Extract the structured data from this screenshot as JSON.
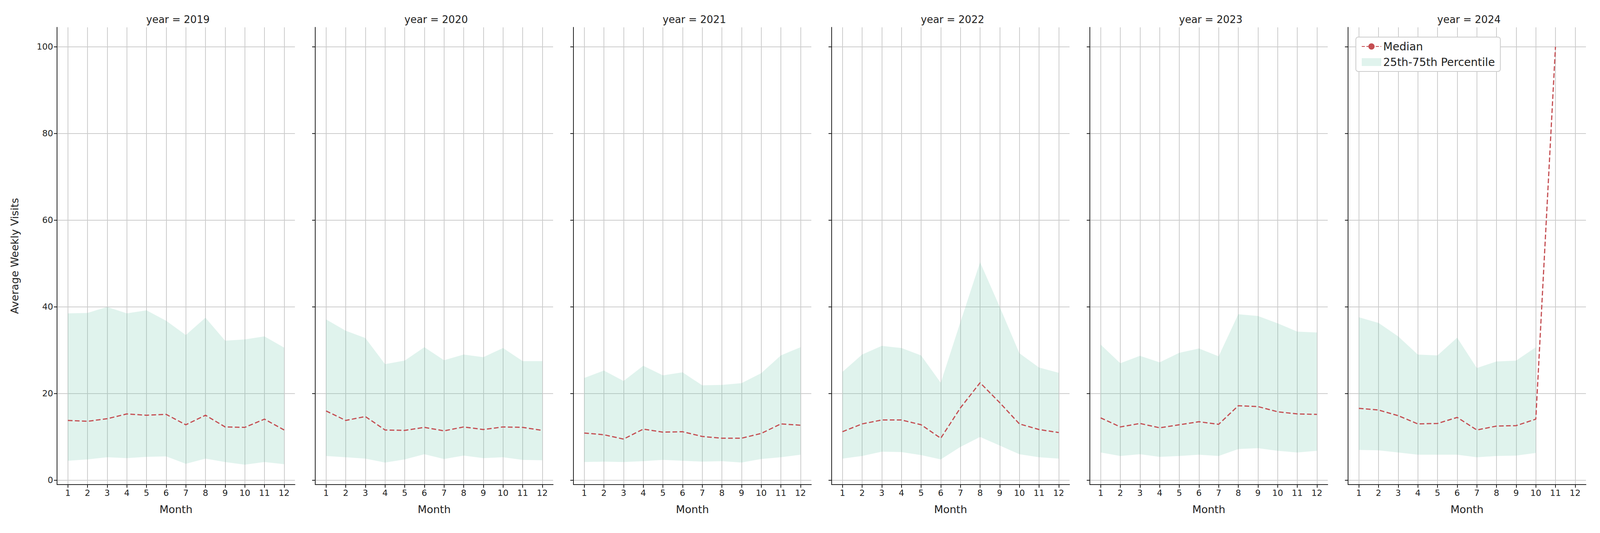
{
  "chart_data": [
    {
      "type": "line",
      "title": "year = 2019",
      "x_label": "Month",
      "y_label": "Average Weekly Visits",
      "x": [
        1,
        2,
        3,
        4,
        5,
        6,
        7,
        8,
        9,
        10,
        11,
        12
      ],
      "xlim": [
        0.45,
        12.55
      ],
      "xticks": [
        1,
        2,
        3,
        4,
        5,
        6,
        7,
        8,
        9,
        10,
        11,
        12
      ],
      "ylim": [
        -1,
        104.5
      ],
      "yticks": [
        0,
        20,
        40,
        60,
        80,
        100
      ],
      "grid": true,
      "series": [
        {
          "name": "Median",
          "type": "line",
          "line_style": "dashed",
          "color": "#c44e52",
          "values": [
            13.8,
            13.6,
            14.2,
            15.3,
            15.0,
            15.2,
            12.8,
            15.0,
            12.3,
            12.2,
            14.1,
            11.6
          ]
        },
        {
          "name": "25th-75th Percentile",
          "type": "band",
          "color": "#66c2a5",
          "lower": [
            4.5,
            4.8,
            5.3,
            5.1,
            5.4,
            5.5,
            3.8,
            5.0,
            4.2,
            3.6,
            4.2,
            3.7
          ],
          "upper": [
            38.5,
            38.6,
            40.0,
            38.5,
            39.2,
            36.8,
            33.5,
            37.5,
            32.2,
            32.5,
            33.2,
            30.6
          ]
        }
      ]
    },
    {
      "type": "line",
      "title": "year = 2020",
      "x_label": "Month",
      "tick_labels": "x",
      "x": [
        1,
        2,
        3,
        4,
        5,
        6,
        7,
        8,
        9,
        10,
        11,
        12
      ],
      "xlim": [
        0.45,
        12.55
      ],
      "xticks": [
        1,
        2,
        3,
        4,
        5,
        6,
        7,
        8,
        9,
        10,
        11,
        12
      ],
      "ylim": [
        -1,
        104.5
      ],
      "yticks": [
        0,
        20,
        40,
        60,
        80,
        100
      ],
      "grid": true,
      "series": [
        {
          "name": "Median",
          "type": "line",
          "line_style": "dashed",
          "color": "#c44e52",
          "values": [
            16.0,
            13.8,
            14.7,
            11.6,
            11.5,
            12.2,
            11.4,
            12.3,
            11.7,
            12.3,
            12.2,
            11.5
          ]
        },
        {
          "name": "25th-75th Percentile",
          "type": "band",
          "color": "#66c2a5",
          "lower": [
            5.6,
            5.3,
            5.0,
            4.1,
            4.8,
            6.0,
            4.9,
            5.7,
            5.1,
            5.3,
            4.7,
            4.6
          ],
          "upper": [
            37.1,
            34.5,
            32.8,
            26.8,
            27.6,
            30.7,
            27.7,
            29.0,
            28.4,
            30.5,
            27.5,
            27.5
          ]
        }
      ]
    },
    {
      "type": "line",
      "title": "year = 2021",
      "x_label": "Month",
      "tick_labels": "x",
      "x": [
        1,
        2,
        3,
        4,
        5,
        6,
        7,
        8,
        9,
        10,
        11,
        12
      ],
      "xlim": [
        0.45,
        12.55
      ],
      "xticks": [
        1,
        2,
        3,
        4,
        5,
        6,
        7,
        8,
        9,
        10,
        11,
        12
      ],
      "ylim": [
        -1,
        104.5
      ],
      "yticks": [
        0,
        20,
        40,
        60,
        80,
        100
      ],
      "grid": true,
      "series": [
        {
          "name": "Median",
          "type": "line",
          "line_style": "dashed",
          "color": "#c44e52",
          "values": [
            10.9,
            10.5,
            9.5,
            11.8,
            11.1,
            11.2,
            10.1,
            9.7,
            9.7,
            10.8,
            13.0,
            12.7
          ]
        },
        {
          "name": "25th-75th Percentile",
          "type": "band",
          "color": "#66c2a5",
          "lower": [
            4.2,
            4.3,
            4.2,
            4.4,
            4.7,
            4.5,
            4.3,
            4.4,
            4.1,
            4.9,
            5.3,
            5.9
          ],
          "upper": [
            23.6,
            25.3,
            22.9,
            26.4,
            24.2,
            24.9,
            21.9,
            22.0,
            22.4,
            24.7,
            28.8,
            30.7
          ]
        }
      ]
    },
    {
      "type": "line",
      "title": "year = 2022",
      "x_label": "Month",
      "tick_labels": "x",
      "x": [
        1,
        2,
        3,
        4,
        5,
        6,
        7,
        8,
        9,
        10,
        11,
        12
      ],
      "xlim": [
        0.45,
        12.55
      ],
      "xticks": [
        1,
        2,
        3,
        4,
        5,
        6,
        7,
        8,
        9,
        10,
        11,
        12
      ],
      "ylim": [
        -1,
        104.5
      ],
      "yticks": [
        0,
        20,
        40,
        60,
        80,
        100
      ],
      "grid": true,
      "series": [
        {
          "name": "Median",
          "type": "line",
          "line_style": "dashed",
          "color": "#c44e52",
          "values": [
            11.2,
            13.0,
            13.9,
            13.9,
            12.8,
            9.7,
            16.7,
            22.5,
            17.9,
            13.0,
            11.7,
            11.0
          ]
        },
        {
          "name": "25th-75th Percentile",
          "type": "band",
          "color": "#66c2a5",
          "lower": [
            5.0,
            5.6,
            6.6,
            6.5,
            5.8,
            4.8,
            7.7,
            10.0,
            8.0,
            6.0,
            5.3,
            5.0
          ],
          "upper": [
            25.0,
            29.0,
            31.0,
            30.5,
            28.8,
            22.5,
            36.5,
            50.3,
            40.0,
            29.3,
            26.0,
            24.8
          ]
        }
      ]
    },
    {
      "type": "line",
      "title": "year = 2023",
      "x_label": "Month",
      "tick_labels": "x",
      "x": [
        1,
        2,
        3,
        4,
        5,
        6,
        7,
        8,
        9,
        10,
        11,
        12
      ],
      "xlim": [
        0.45,
        12.55
      ],
      "xticks": [
        1,
        2,
        3,
        4,
        5,
        6,
        7,
        8,
        9,
        10,
        11,
        12
      ],
      "ylim": [
        -1,
        104.5
      ],
      "yticks": [
        0,
        20,
        40,
        60,
        80,
        100
      ],
      "grid": true,
      "series": [
        {
          "name": "Median",
          "type": "line",
          "line_style": "dashed",
          "color": "#c44e52",
          "values": [
            14.4,
            12.3,
            13.1,
            12.1,
            12.8,
            13.5,
            12.9,
            17.2,
            17.0,
            15.8,
            15.3,
            15.2
          ]
        },
        {
          "name": "25th-75th Percentile",
          "type": "band",
          "color": "#66c2a5",
          "lower": [
            6.4,
            5.6,
            6.0,
            5.4,
            5.6,
            5.9,
            5.6,
            7.2,
            7.4,
            6.8,
            6.4,
            6.8
          ],
          "upper": [
            31.3,
            27.0,
            28.7,
            27.2,
            29.4,
            30.4,
            28.6,
            38.3,
            37.9,
            36.2,
            34.3,
            34.1
          ]
        }
      ]
    },
    {
      "type": "line",
      "title": "year = 2024",
      "x_label": "Month",
      "tick_labels": "x",
      "legend": "upper left",
      "x": [
        1,
        2,
        3,
        4,
        5,
        6,
        7,
        8,
        9,
        10,
        11,
        12
      ],
      "xlim": [
        0.45,
        12.55
      ],
      "xticks": [
        1,
        2,
        3,
        4,
        5,
        6,
        7,
        8,
        9,
        10,
        11,
        12
      ],
      "ylim": [
        -1,
        104.5
      ],
      "yticks": [
        0,
        20,
        40,
        60,
        80,
        100
      ],
      "grid": true,
      "series": [
        {
          "name": "Median",
          "type": "line",
          "line_style": "dashed",
          "color": "#c44e52",
          "values": [
            16.6,
            16.2,
            14.9,
            13.0,
            13.1,
            14.5,
            11.6,
            12.5,
            12.6,
            14.1,
            100,
            null
          ]
        },
        {
          "name": "25th-75th Percentile",
          "type": "band",
          "color": "#66c2a5",
          "lower": [
            7.0,
            6.9,
            6.4,
            5.9,
            5.9,
            5.9,
            5.3,
            5.6,
            5.7,
            6.3,
            null,
            null
          ],
          "upper": [
            37.6,
            36.3,
            33.2,
            29.0,
            28.8,
            32.9,
            25.9,
            27.4,
            27.6,
            30.7,
            null,
            null
          ]
        }
      ]
    }
  ]
}
